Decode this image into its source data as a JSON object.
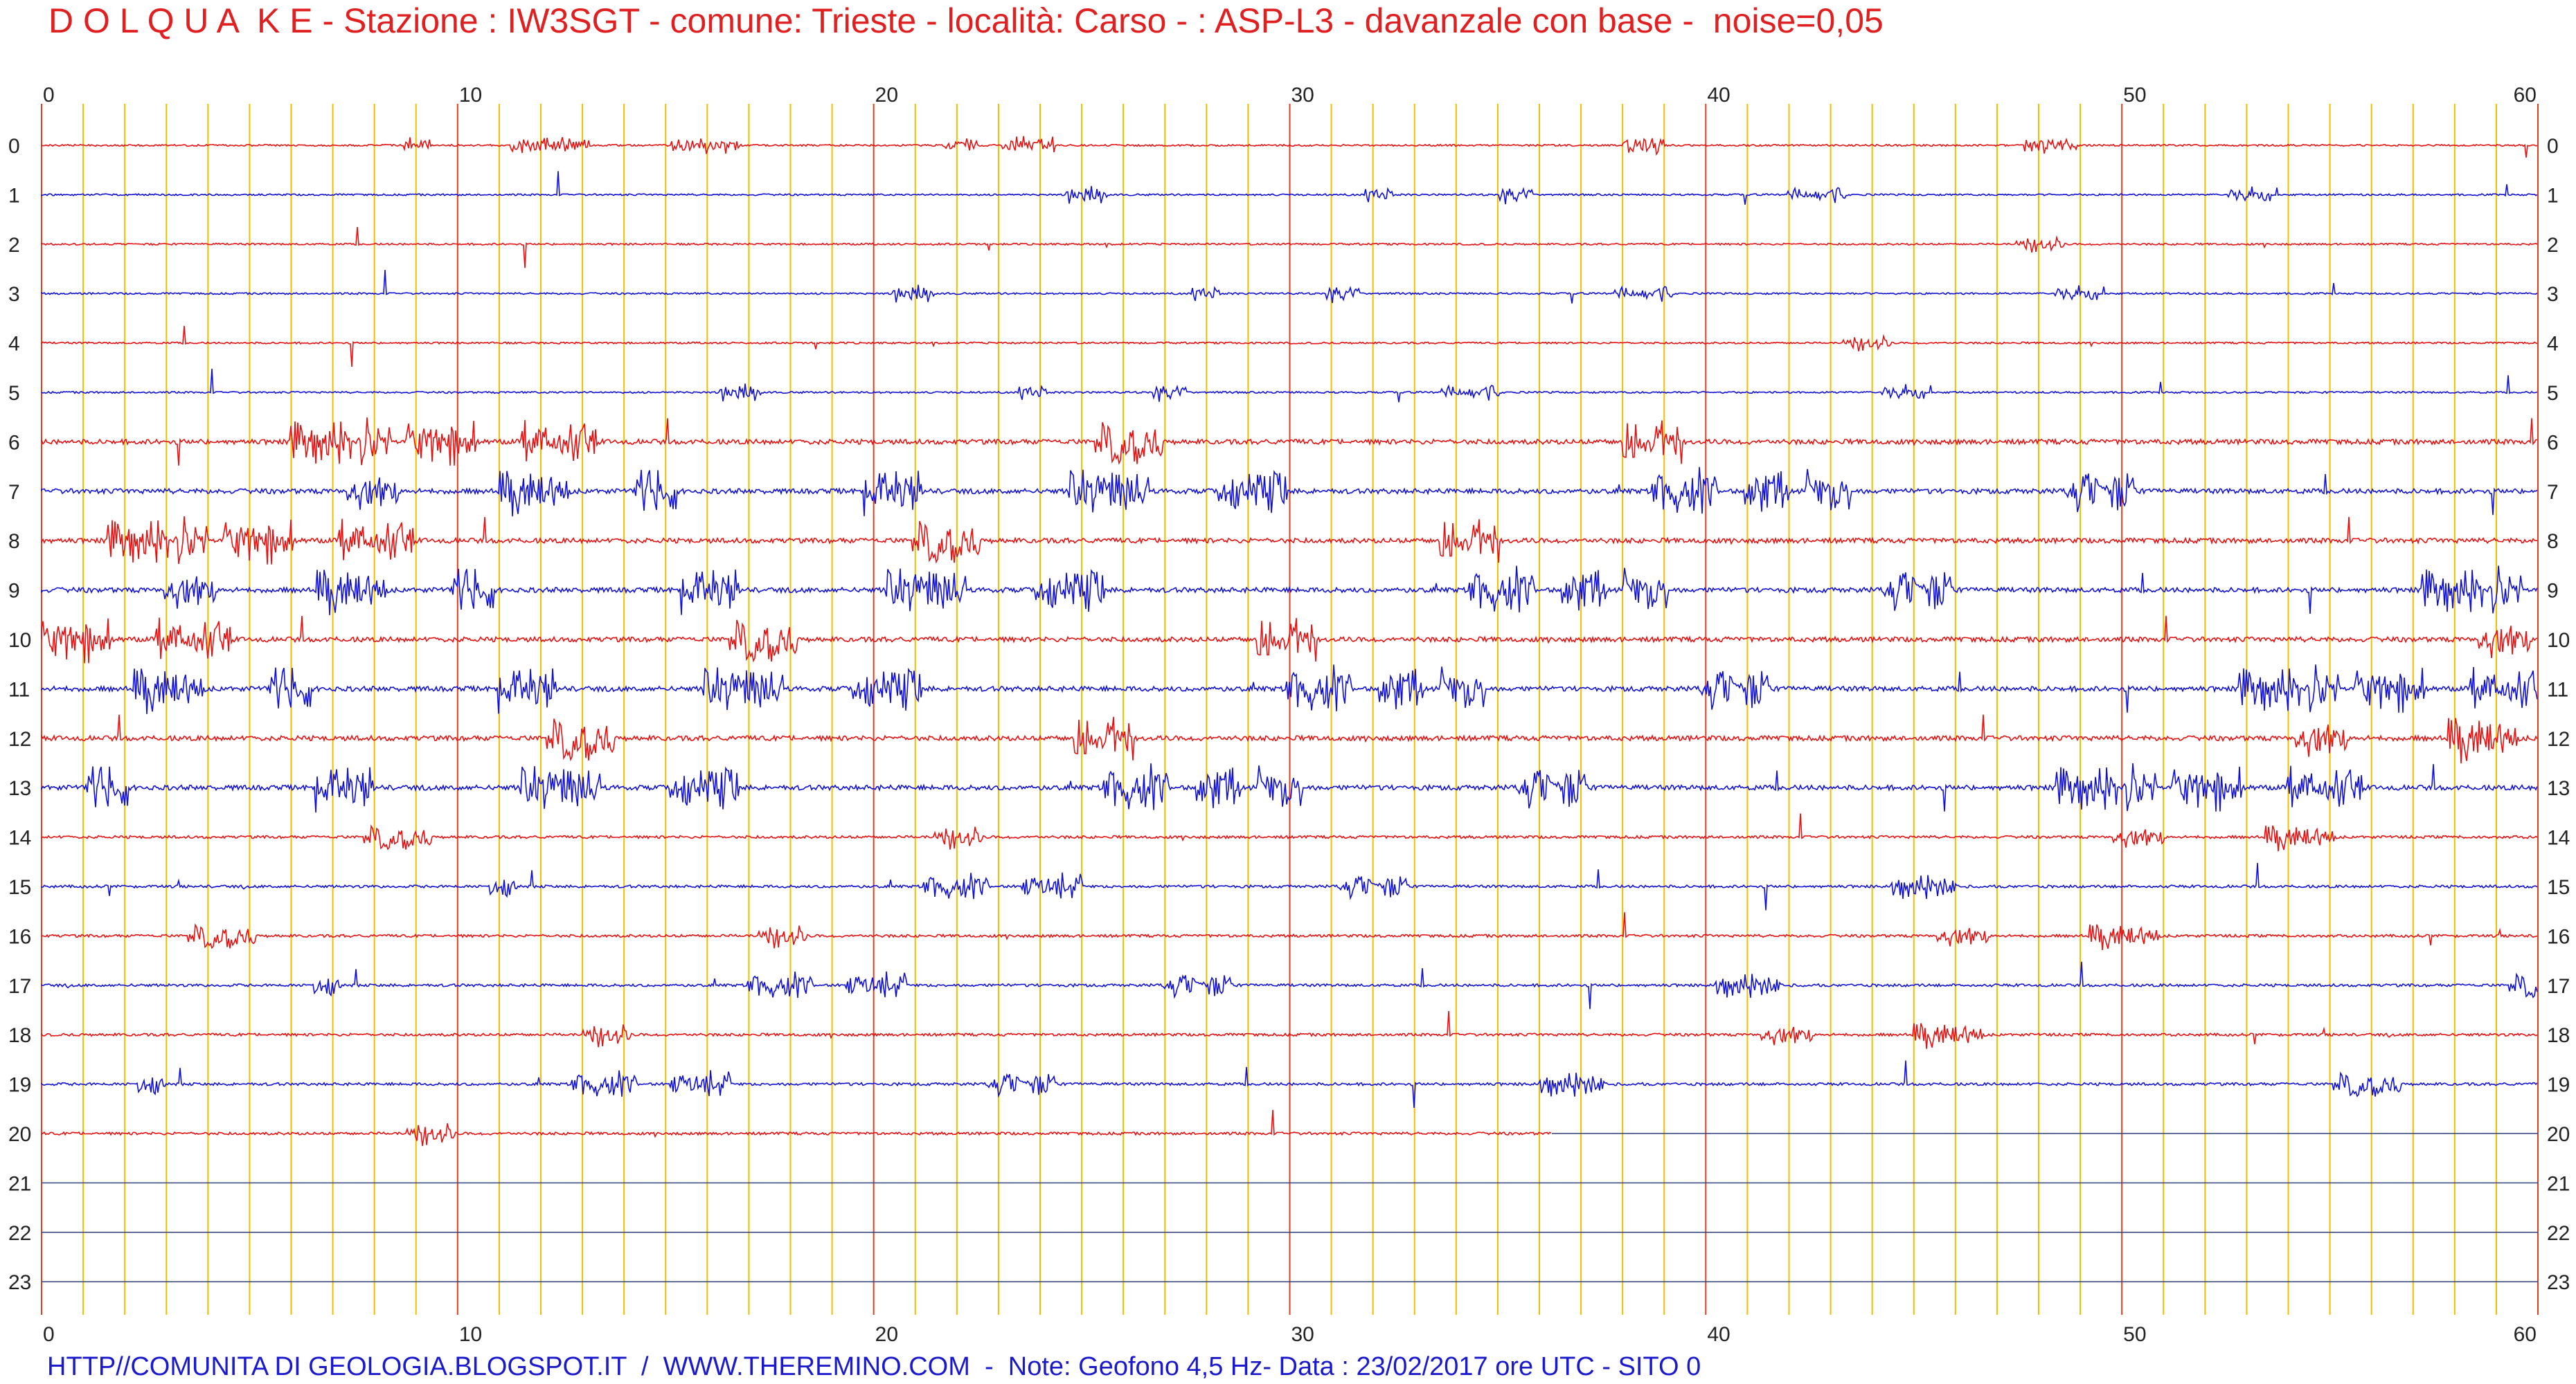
{
  "title": "D O L Q U A  K E - Stazione : IW3SGT - comune: Trieste - località: Carso - : ASP-L3 - davanzale con base -  noise=0,05",
  "footer": "HTTP//COMUNITA DI GEOLOGIA.BLOGSPOT.IT  /  WWW.THEREMINO.COM  -  Note: Geofono 4,5 Hz- Data : 23/02/2017 ore UTC - SITO 0",
  "chart_data": {
    "type": "line",
    "description_kind": "helicorder seismogram",
    "x_ticks": [
      "0",
      "10",
      "20",
      "30",
      "40",
      "50",
      "60"
    ],
    "y_ticks": [
      "0",
      "1",
      "2",
      "3",
      "4",
      "5",
      "6",
      "7",
      "8",
      "9",
      "10",
      "11",
      "12",
      "13",
      "14",
      "15",
      "16",
      "17",
      "18",
      "19",
      "20",
      "21",
      "22",
      "23"
    ],
    "xlim": [
      0,
      60
    ],
    "ylim": [
      0,
      23
    ],
    "colors": {
      "even_trace": "#e81010",
      "odd_trace": "#1010d8",
      "minor_grid": "#f0c000",
      "major_grid": "#e04020",
      "empty_line": "#30407a"
    },
    "rows_recorded": 21,
    "last_row_end_minute": 36.3,
    "grid": true
  }
}
